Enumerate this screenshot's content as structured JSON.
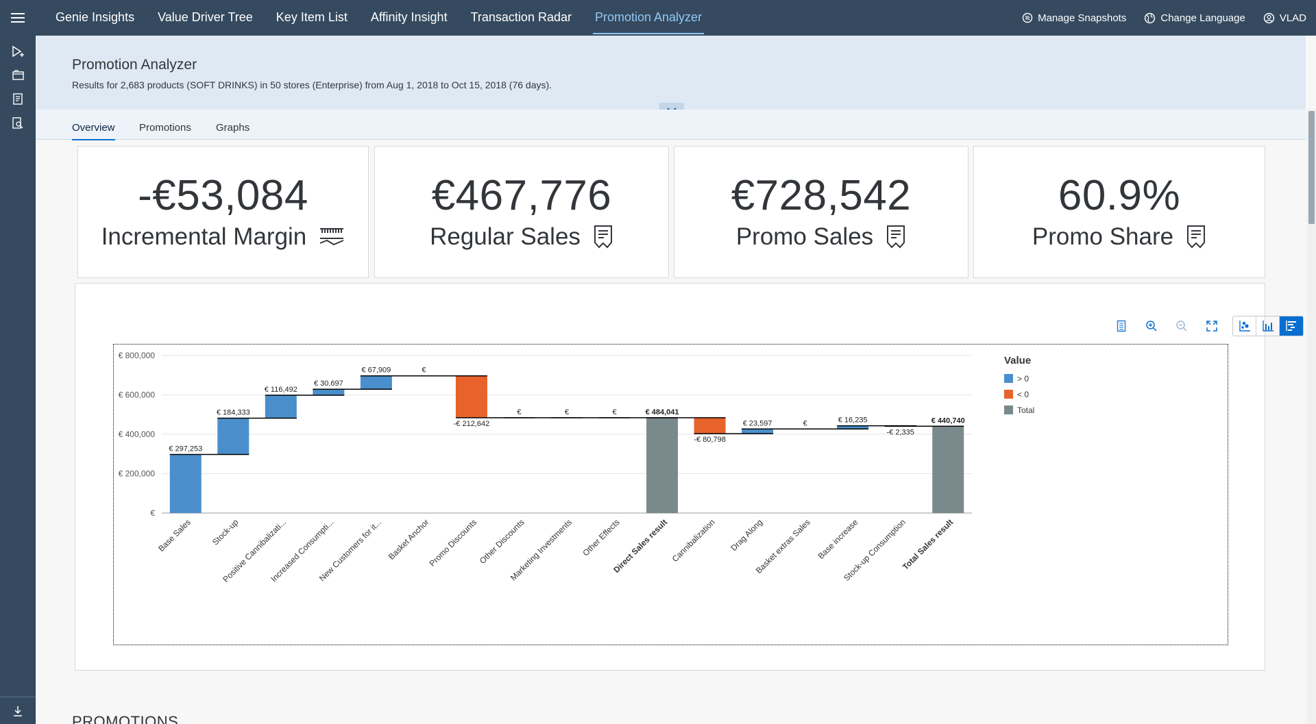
{
  "nav": {
    "items": [
      {
        "label": "Genie Insights",
        "active": false
      },
      {
        "label": "Value Driver Tree",
        "active": false
      },
      {
        "label": "Key Item List",
        "active": false
      },
      {
        "label": "Affinity Insight",
        "active": false
      },
      {
        "label": "Transaction Radar",
        "active": false
      },
      {
        "label": "Promotion Analyzer",
        "active": true
      }
    ],
    "actions": {
      "snapshots": "Manage Snapshots",
      "language": "Change Language",
      "user": "VLAD"
    }
  },
  "header": {
    "title": "Promotion Analyzer",
    "subtitle": "Results for 2,683 products (SOFT DRINKS) in 50 stores (Enterprise) from Aug 1, 2018 to Oct 15, 2018 (76 days)."
  },
  "tabs": [
    {
      "label": "Overview",
      "active": true
    },
    {
      "label": "Promotions",
      "active": false
    },
    {
      "label": "Graphs",
      "active": false
    }
  ],
  "kpis": [
    {
      "value": "-€53,084",
      "label": "Incremental Margin",
      "icon": "margin-icon"
    },
    {
      "value": "€467,776",
      "label": "Regular Sales",
      "icon": "receipt-icon"
    },
    {
      "value": "€728,542",
      "label": "Promo Sales",
      "icon": "receipt-icon"
    },
    {
      "value": "60.9%",
      "label": "Promo Share",
      "icon": "receipt-icon"
    }
  ],
  "colors": {
    "positive": "#4a8fcb",
    "negative": "#e8632c",
    "total": "#7a8a8c",
    "shell": "#354a5f",
    "accent": "#0a6ed1"
  },
  "chart_data": {
    "type": "bar",
    "subtype": "waterfall",
    "ylim": [
      0,
      800000
    ],
    "yticks": [
      {
        "value": 0,
        "label": "€"
      },
      {
        "value": 200000,
        "label": "€ 200,000"
      },
      {
        "value": 400000,
        "label": "€ 400,000"
      },
      {
        "value": 600000,
        "label": "€ 600,000"
      },
      {
        "value": 800000,
        "label": "€ 800,000"
      }
    ],
    "categories": [
      {
        "label": "Base Sales",
        "start": 0,
        "end": 297253,
        "kind": "pos",
        "value_label": "€ 297,253",
        "bold": false
      },
      {
        "label": "Stock-up",
        "start": 297253,
        "end": 481586,
        "kind": "pos",
        "value_label": "€ 184,333",
        "bold": false
      },
      {
        "label": "Positive Cannibalizati...",
        "start": 481586,
        "end": 598078,
        "kind": "pos",
        "value_label": "€ 116,492",
        "bold": false
      },
      {
        "label": "Increased Consumpti...",
        "start": 598078,
        "end": 628775,
        "kind": "pos",
        "value_label": "€ 30,697",
        "bold": false
      },
      {
        "label": "New Customers for it...",
        "start": 628775,
        "end": 696684,
        "kind": "pos",
        "value_label": "€ 67,909",
        "bold": false
      },
      {
        "label": "Basket Anchor",
        "start": 696684,
        "end": 696684,
        "kind": "pos",
        "value_label": "€",
        "bold": false
      },
      {
        "label": "Promo Discounts",
        "start": 696684,
        "end": 484042,
        "kind": "neg",
        "value_label": "-€ 212,642",
        "bold": false
      },
      {
        "label": "Other Discounts",
        "start": 484042,
        "end": 484042,
        "kind": "pos",
        "value_label": "€",
        "bold": false
      },
      {
        "label": "Marketing Investments",
        "start": 484042,
        "end": 484042,
        "kind": "pos",
        "value_label": "€",
        "bold": false
      },
      {
        "label": "Other Effects",
        "start": 484042,
        "end": 484042,
        "kind": "pos",
        "value_label": "€",
        "bold": false
      },
      {
        "label": "Direct Sales result",
        "start": 0,
        "end": 484041,
        "kind": "total",
        "value_label": "€ 484,041",
        "bold": true
      },
      {
        "label": "Cannibalization",
        "start": 484041,
        "end": 403243,
        "kind": "neg",
        "value_label": "-€ 80,798",
        "bold": false
      },
      {
        "label": "Drag Along",
        "start": 403243,
        "end": 426840,
        "kind": "pos",
        "value_label": "€ 23,597",
        "bold": false
      },
      {
        "label": "Basket extras Sales",
        "start": 426840,
        "end": 426840,
        "kind": "pos",
        "value_label": "€",
        "bold": false
      },
      {
        "label": "Base increase",
        "start": 426840,
        "end": 443075,
        "kind": "pos",
        "value_label": "€ 16,235",
        "bold": false
      },
      {
        "label": "Stock-up Consumption",
        "start": 443075,
        "end": 440740,
        "kind": "neg",
        "value_label": "-€ 2,335",
        "bold": false
      },
      {
        "label": "Total Sales result",
        "start": 0,
        "end": 440740,
        "kind": "total",
        "value_label": "€ 440,740",
        "bold": true
      }
    ],
    "legend": {
      "title": "Value",
      "placement": "right",
      "items": [
        {
          "label": "> 0",
          "kind": "pos"
        },
        {
          "label": "< 0",
          "kind": "neg"
        },
        {
          "label": "Total",
          "kind": "total"
        }
      ]
    }
  },
  "sections": {
    "promotions_heading": "PROMOTIONS"
  }
}
